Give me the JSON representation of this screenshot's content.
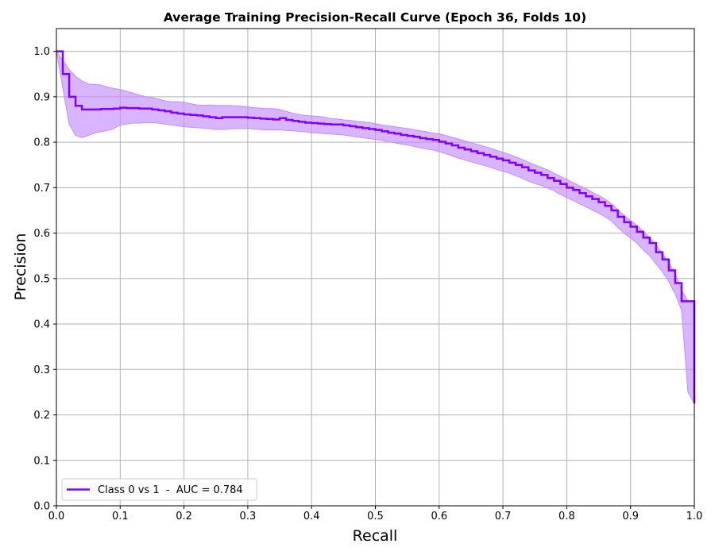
{
  "chart_data": {
    "type": "line",
    "title": "Average Training Precision-Recall Curve (Epoch 36, Folds 10)",
    "xlabel": "Recall",
    "ylabel": "Precision",
    "xlim": [
      0.0,
      1.0
    ],
    "ylim": [
      0.0,
      1.05
    ],
    "xticks": [
      "0.0",
      "0.1",
      "0.2",
      "0.3",
      "0.4",
      "0.5",
      "0.6",
      "0.7",
      "0.8",
      "0.9",
      "1.0"
    ],
    "yticks": [
      "0.0",
      "0.1",
      "0.2",
      "0.3",
      "0.4",
      "0.5",
      "0.6",
      "0.7",
      "0.8",
      "0.9",
      "1.0"
    ],
    "grid": true,
    "legend": {
      "placement": "lower-left",
      "entries": [
        "Class 0 vs 1  -  AUC = 0.784"
      ]
    },
    "series": [
      {
        "name": "Class 0 vs 1  -  AUC = 0.784",
        "color": "#7f00ff",
        "band_color": "#c48cff",
        "step": true,
        "x": [
          0.0,
          0.01,
          0.02,
          0.03,
          0.04,
          0.05,
          0.06,
          0.07,
          0.08,
          0.09,
          0.1,
          0.11,
          0.12,
          0.13,
          0.14,
          0.15,
          0.16,
          0.17,
          0.18,
          0.19,
          0.2,
          0.21,
          0.22,
          0.23,
          0.24,
          0.25,
          0.26,
          0.27,
          0.28,
          0.29,
          0.3,
          0.31,
          0.32,
          0.33,
          0.34,
          0.35,
          0.36,
          0.37,
          0.38,
          0.39,
          0.4,
          0.41,
          0.42,
          0.43,
          0.44,
          0.45,
          0.46,
          0.47,
          0.48,
          0.49,
          0.5,
          0.51,
          0.52,
          0.53,
          0.54,
          0.55,
          0.56,
          0.57,
          0.58,
          0.59,
          0.6,
          0.61,
          0.62,
          0.63,
          0.64,
          0.65,
          0.66,
          0.67,
          0.68,
          0.69,
          0.7,
          0.71,
          0.72,
          0.73,
          0.74,
          0.75,
          0.76,
          0.77,
          0.78,
          0.79,
          0.8,
          0.81,
          0.82,
          0.83,
          0.84,
          0.85,
          0.86,
          0.87,
          0.88,
          0.89,
          0.9,
          0.91,
          0.92,
          0.93,
          0.94,
          0.95,
          0.96,
          0.97,
          0.98,
          0.99,
          1.0
        ],
        "mean": [
          1.0,
          0.95,
          0.9,
          0.88,
          0.872,
          0.872,
          0.872,
          0.873,
          0.873,
          0.874,
          0.876,
          0.875,
          0.875,
          0.874,
          0.874,
          0.872,
          0.87,
          0.868,
          0.865,
          0.863,
          0.861,
          0.86,
          0.859,
          0.857,
          0.855,
          0.853,
          0.855,
          0.855,
          0.855,
          0.855,
          0.854,
          0.853,
          0.852,
          0.851,
          0.85,
          0.853,
          0.849,
          0.847,
          0.845,
          0.843,
          0.842,
          0.841,
          0.84,
          0.839,
          0.839,
          0.837,
          0.835,
          0.833,
          0.831,
          0.829,
          0.827,
          0.824,
          0.821,
          0.819,
          0.816,
          0.814,
          0.812,
          0.809,
          0.807,
          0.805,
          0.801,
          0.797,
          0.793,
          0.788,
          0.784,
          0.78,
          0.776,
          0.772,
          0.768,
          0.764,
          0.76,
          0.755,
          0.75,
          0.745,
          0.738,
          0.733,
          0.728,
          0.721,
          0.715,
          0.708,
          0.7,
          0.695,
          0.688,
          0.681,
          0.675,
          0.668,
          0.66,
          0.65,
          0.636,
          0.624,
          0.614,
          0.603,
          0.59,
          0.578,
          0.558,
          0.542,
          0.518,
          0.49,
          0.45,
          0.45,
          0.225
        ],
        "upper": [
          1.0,
          0.98,
          0.96,
          0.945,
          0.935,
          0.928,
          0.927,
          0.926,
          0.921,
          0.918,
          0.916,
          0.912,
          0.908,
          0.904,
          0.9,
          0.898,
          0.895,
          0.891,
          0.889,
          0.889,
          0.888,
          0.885,
          0.882,
          0.881,
          0.882,
          0.881,
          0.881,
          0.881,
          0.88,
          0.879,
          0.878,
          0.876,
          0.875,
          0.874,
          0.874,
          0.872,
          0.868,
          0.864,
          0.861,
          0.859,
          0.858,
          0.857,
          0.855,
          0.852,
          0.851,
          0.849,
          0.848,
          0.846,
          0.845,
          0.843,
          0.841,
          0.838,
          0.836,
          0.834,
          0.832,
          0.83,
          0.828,
          0.825,
          0.823,
          0.82,
          0.818,
          0.815,
          0.811,
          0.807,
          0.803,
          0.799,
          0.795,
          0.791,
          0.787,
          0.782,
          0.778,
          0.773,
          0.768,
          0.762,
          0.756,
          0.75,
          0.745,
          0.739,
          0.732,
          0.725,
          0.718,
          0.711,
          0.704,
          0.698,
          0.69,
          0.683,
          0.675,
          0.665,
          0.652,
          0.639,
          0.628,
          0.617,
          0.604,
          0.589,
          0.574,
          0.555,
          0.535,
          0.51,
          0.475,
          0.45,
          0.45
        ],
        "lower": [
          1.0,
          0.92,
          0.84,
          0.815,
          0.81,
          0.815,
          0.82,
          0.823,
          0.826,
          0.83,
          0.838,
          0.84,
          0.842,
          0.842,
          0.843,
          0.843,
          0.842,
          0.84,
          0.838,
          0.836,
          0.834,
          0.833,
          0.832,
          0.831,
          0.83,
          0.828,
          0.828,
          0.829,
          0.83,
          0.83,
          0.83,
          0.829,
          0.828,
          0.827,
          0.827,
          0.827,
          0.826,
          0.825,
          0.824,
          0.823,
          0.821,
          0.82,
          0.819,
          0.818,
          0.817,
          0.816,
          0.814,
          0.812,
          0.81,
          0.808,
          0.806,
          0.804,
          0.801,
          0.799,
          0.796,
          0.794,
          0.791,
          0.788,
          0.785,
          0.783,
          0.779,
          0.775,
          0.77,
          0.765,
          0.761,
          0.757,
          0.753,
          0.749,
          0.745,
          0.74,
          0.736,
          0.732,
          0.726,
          0.721,
          0.714,
          0.709,
          0.705,
          0.699,
          0.693,
          0.685,
          0.678,
          0.672,
          0.665,
          0.658,
          0.651,
          0.644,
          0.636,
          0.627,
          0.612,
          0.6,
          0.589,
          0.578,
          0.563,
          0.55,
          0.532,
          0.515,
          0.493,
          0.466,
          0.43,
          0.25,
          0.225
        ]
      }
    ]
  }
}
